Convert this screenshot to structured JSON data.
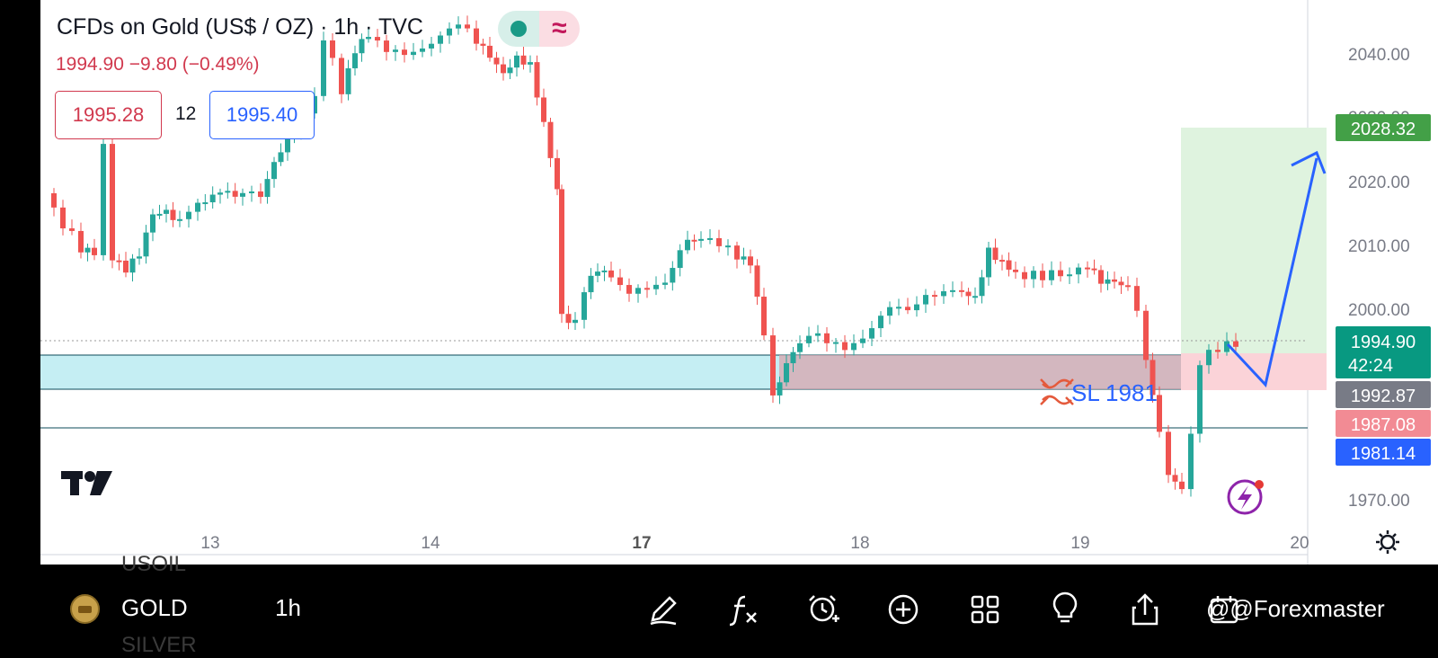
{
  "header": {
    "symbol_title": "CFDs on Gold (US$ / OZ) · 1h · TVC",
    "quote": "1994.90  −9.80 (−0.49%)",
    "sell_price": "1995.28",
    "spread": "12",
    "buy_price": "1995.40",
    "indicator_chip_glyph": "≈"
  },
  "price_axis": {
    "ticks": [
      "2040.00",
      "2030.00",
      "2020.00",
      "2010.00",
      "2000.00",
      "1970.00"
    ],
    "labels": {
      "take_profit": "2028.32",
      "last_price": "1994.90",
      "countdown": "42:24",
      "grey_level": "1992.87",
      "red_level": "1987.08",
      "blue_level": "1981.14"
    }
  },
  "time_axis": {
    "ticks": [
      "13",
      "14",
      "17",
      "18",
      "19",
      "20"
    ]
  },
  "annotations": {
    "stop_loss": "SL 1981"
  },
  "bottom_bar": {
    "symbol_above": "USOIL",
    "symbol": "GOLD",
    "symbol_below": "SILVER",
    "interval": "1h",
    "watermark": "@@Forexmaster",
    "icons": [
      "pencil-icon",
      "function-icon",
      "alarm-add-icon",
      "plus-circle-icon",
      "grid-icon",
      "lightbulb-icon",
      "share-icon",
      "calendar-icon"
    ]
  },
  "colors": {
    "bull": "#26a69a",
    "bear": "#ef5350",
    "accent_blue": "#2962ff",
    "target_green": "#43a047",
    "zone_cyan": "#c5eef3",
    "zone_red": "#f4c7cd"
  }
}
